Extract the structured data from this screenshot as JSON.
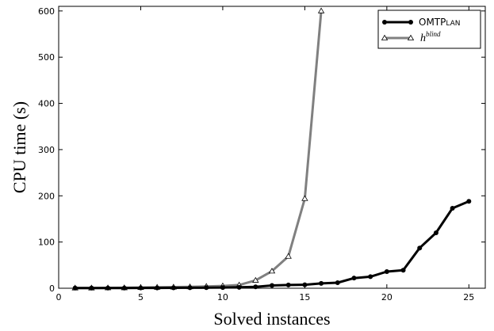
{
  "chart_data": {
    "type": "line",
    "title": "",
    "xlabel": "Solved instances",
    "ylabel": "CPU time (s)",
    "xlim": [
      0,
      26
    ],
    "ylim": [
      0,
      610
    ],
    "xticks": [
      0,
      5,
      10,
      15,
      20,
      25
    ],
    "yticks": [
      0,
      100,
      200,
      300,
      400,
      500,
      600
    ],
    "grid": false,
    "legend_position": "top-right",
    "series": [
      {
        "name": "OMTPlan",
        "legend_main": "OMTP",
        "legend_smallcaps": "LAN",
        "color": "#000000",
        "marker": "circle",
        "x": [
          1,
          2,
          3,
          4,
          5,
          6,
          7,
          8,
          9,
          10,
          11,
          12,
          13,
          14,
          15,
          16,
          17,
          18,
          19,
          20,
          21,
          22,
          23,
          24,
          25
        ],
        "y": [
          0.5,
          0.5,
          0.5,
          0.5,
          0.6,
          0.7,
          0.8,
          1.0,
          1.2,
          1.5,
          2.0,
          3.0,
          6.0,
          7.0,
          7.5,
          10.5,
          12.0,
          22.0,
          25.0,
          36.0,
          39.0,
          87.0,
          120.0,
          173.0,
          188.0
        ]
      },
      {
        "name": "h^blind",
        "legend_base": "h",
        "legend_sup": "blind",
        "color": "#808080",
        "marker": "triangle",
        "x": [
          1,
          2,
          3,
          4,
          5,
          6,
          7,
          8,
          9,
          10,
          11,
          12,
          13,
          14,
          15,
          16
        ],
        "y": [
          0.5,
          0.5,
          0.8,
          1.0,
          1.5,
          2.0,
          2.5,
          3.0,
          4.0,
          5.0,
          7.0,
          17.0,
          37.0,
          69.0,
          194.0,
          600.0
        ]
      }
    ]
  }
}
